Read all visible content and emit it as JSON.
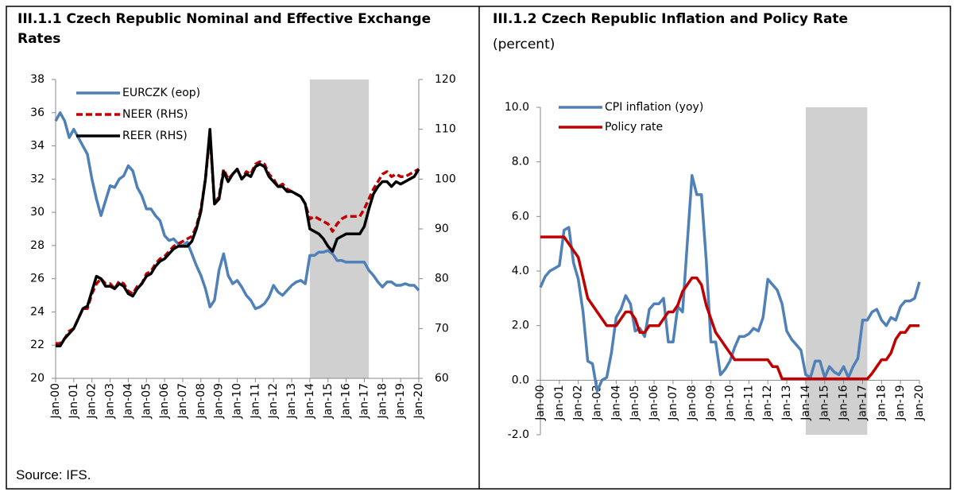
{
  "chart_data": [
    {
      "type": "line",
      "title": "III.1.1 Czech Republic Nominal and Effective Exchange Rates",
      "categories": [
        "Jan-00",
        null,
        null,
        null,
        "Jan-01",
        null,
        null,
        null,
        "Jan-02",
        null,
        null,
        null,
        "Jan-03",
        null,
        null,
        null,
        "Jan-04",
        null,
        null,
        null,
        "Jan-05",
        null,
        null,
        null,
        "Jan-06",
        null,
        null,
        null,
        "Jan-07",
        null,
        null,
        null,
        "Jan-08",
        null,
        null,
        null,
        "Jan-09",
        null,
        null,
        null,
        "Jan-10",
        null,
        null,
        null,
        "Jan-11",
        null,
        null,
        null,
        "Jan-12",
        null,
        null,
        null,
        "Jan-13",
        null,
        null,
        null,
        "Jan-14",
        null,
        null,
        null,
        "Jan-15",
        null,
        null,
        null,
        "Jan-16",
        null,
        null,
        null,
        "Jan-17",
        null,
        null,
        null,
        "Jan-18",
        null,
        null,
        null,
        "Jan-19",
        null,
        null,
        null,
        "Jan-20"
      ],
      "ylim": [
        20,
        38
      ],
      "yticks": [
        20,
        22,
        24,
        26,
        28,
        30,
        32,
        34,
        36,
        38
      ],
      "y2lim": [
        60,
        120
      ],
      "y2ticks": [
        60,
        70,
        80,
        90,
        100,
        110,
        120
      ],
      "shade_from": 56,
      "shade_to": 69,
      "shade_color": "#d0d0d0",
      "series": [
        {
          "name": "EURCZK (eop)",
          "color": "#4f81b8",
          "values": [
            35.5,
            36,
            35.5,
            34.5,
            35,
            34.5,
            34,
            33.5,
            32,
            30.8,
            29.8,
            30.7,
            31.6,
            31.5,
            32,
            32.2,
            32.8,
            32.5,
            31.5,
            31,
            30.2,
            30.2,
            29.8,
            29.5,
            28.6,
            28.3,
            28.4,
            28.1,
            28,
            28.2,
            27.5,
            26.8,
            26.2,
            25.4,
            24.3,
            24.7,
            26.5,
            27.5,
            26.2,
            25.7,
            25.9,
            25.5,
            25,
            24.7,
            24.2,
            24.3,
            24.5,
            24.9,
            25.6,
            25.2,
            25,
            25.3,
            25.6,
            25.8,
            25.9,
            25.7,
            27.4,
            27.4,
            27.6,
            27.6,
            27.7,
            27.5,
            27.1,
            27.1,
            27,
            27,
            27,
            27,
            27,
            26.5,
            26.2,
            25.8,
            25.5,
            25.8,
            25.8,
            25.6,
            25.6,
            25.7,
            25.6,
            25.6,
            25.3
          ]
        },
        {
          "name": "NEER (RHS)",
          "color": "#c00000",
          "dashed": true,
          "axis": "y2",
          "values": [
            67,
            67,
            68,
            69.5,
            70,
            72,
            74,
            74,
            77,
            79,
            80,
            79,
            79,
            78,
            79.5,
            79,
            77.5,
            77,
            78.5,
            79,
            81,
            81.5,
            83,
            84,
            84.5,
            85.5,
            86.5,
            87,
            87.5,
            88,
            88.5,
            90.5,
            94,
            100,
            109,
            95,
            96.5,
            102,
            100,
            101,
            102,
            100,
            101.5,
            101,
            103,
            103.5,
            103,
            101,
            100,
            98.5,
            99,
            98,
            97.5,
            97,
            96.5,
            95,
            92,
            92.5,
            92,
            91.5,
            91,
            89.5,
            91,
            92,
            92.5,
            92.5,
            92.5,
            92.5,
            94,
            96,
            98,
            99.5,
            101,
            101.5,
            100.5,
            101,
            100.5,
            100.5,
            101,
            101.5,
            102
          ]
        },
        {
          "name": "REER (RHS)",
          "color": "#000000",
          "axis": "y2",
          "values": [
            66.5,
            66.5,
            68,
            69,
            70,
            72,
            74,
            74.5,
            77.5,
            80.5,
            80,
            78.5,
            78.5,
            78,
            79,
            78.5,
            77,
            76.5,
            78,
            79,
            80.5,
            81,
            82.5,
            83.5,
            84,
            85,
            86,
            86.5,
            86.5,
            86.5,
            87.5,
            90,
            93.5,
            100,
            110,
            95,
            96,
            101.5,
            99.5,
            101,
            102,
            100,
            101,
            100.5,
            102.5,
            103,
            102.5,
            100.5,
            99.5,
            98.5,
            98.5,
            97.5,
            97.5,
            97,
            96.5,
            95,
            90,
            89.5,
            89,
            88,
            86.5,
            85.5,
            88,
            88.5,
            89,
            89,
            89,
            89,
            90.5,
            94,
            97,
            98.5,
            99.5,
            99.5,
            98.5,
            99.5,
            99,
            99.5,
            100,
            100.5,
            102
          ]
        }
      ]
    },
    {
      "type": "line",
      "title": "III.1.2 Czech Republic Inflation and Policy Rate",
      "subtitle": "(percent)",
      "categories": [
        "Jan-00",
        null,
        null,
        null,
        "Jan-01",
        null,
        null,
        null,
        "Jan-02",
        null,
        null,
        null,
        "Jan-03",
        null,
        null,
        null,
        "Jan-04",
        null,
        null,
        null,
        "Jan-05",
        null,
        null,
        null,
        "Jan-06",
        null,
        null,
        null,
        "Jan-07",
        null,
        null,
        null,
        "Jan-08",
        null,
        null,
        null,
        "Jan-09",
        null,
        null,
        null,
        "Jan-10",
        null,
        null,
        null,
        "Jan-11",
        null,
        null,
        null,
        "Jan-12",
        null,
        null,
        null,
        "Jan-13",
        null,
        null,
        null,
        "Jan-14",
        null,
        null,
        null,
        "Jan-15",
        null,
        null,
        null,
        "Jan-16",
        null,
        null,
        null,
        "Jan-17",
        null,
        null,
        null,
        "Jan-18",
        null,
        null,
        null,
        "Jan-19",
        null,
        null,
        null,
        "Jan-20"
      ],
      "ylim": [
        -2,
        10
      ],
      "yticks": [
        {
          "value": -2,
          "label": "-2.0"
        },
        {
          "value": 0,
          "label": "0.0"
        },
        {
          "value": 2,
          "label": "2.0"
        },
        {
          "value": 4,
          "label": "4.0"
        },
        {
          "value": 6,
          "label": "6.0"
        },
        {
          "value": 8,
          "label": "8.0"
        },
        {
          "value": 10,
          "label": "10.0"
        }
      ],
      "shade_from": 56,
      "shade_to": 69,
      "shade_color": "#d0d0d0",
      "series": [
        {
          "name": "CPI inflation (yoy)",
          "color": "#4f81b8",
          "values": [
            3.4,
            3.8,
            4,
            4.1,
            4.2,
            5.5,
            5.6,
            4.3,
            3.7,
            2.5,
            0.7,
            0.6,
            -0.4,
            0,
            0.1,
            1,
            2.3,
            2.6,
            3.1,
            2.8,
            1.8,
            1.9,
            1.6,
            2.6,
            2.8,
            2.8,
            3,
            1.4,
            1.4,
            2.7,
            2.5,
            5,
            7.5,
            6.8,
            6.8,
            4.4,
            1.4,
            1.4,
            0.2,
            0.4,
            0.7,
            1.2,
            1.6,
            1.6,
            1.7,
            1.9,
            1.8,
            2.3,
            3.7,
            3.5,
            3.3,
            2.8,
            1.8,
            1.5,
            1.3,
            1.1,
            0.2,
            0.1,
            0.7,
            0.7,
            0.1,
            0.5,
            0.3,
            0.2,
            0.5,
            0.1,
            0.5,
            0.8,
            2.2,
            2.2,
            2.5,
            2.6,
            2.2,
            2,
            2.3,
            2.2,
            2.7,
            2.9,
            2.9,
            3,
            3.6
          ]
        },
        {
          "name": "Policy rate",
          "color": "#c00000",
          "values": [
            5.25,
            5.25,
            5.25,
            5.25,
            5.25,
            5.25,
            5,
            4.75,
            4.5,
            3.75,
            3,
            2.75,
            2.5,
            2.25,
            2,
            2,
            2,
            2.25,
            2.5,
            2.5,
            2.25,
            1.75,
            1.75,
            2,
            2,
            2,
            2.25,
            2.5,
            2.5,
            2.75,
            3.25,
            3.5,
            3.75,
            3.75,
            3.5,
            2.75,
            2.25,
            1.75,
            1.5,
            1.25,
            1,
            0.75,
            0.75,
            0.75,
            0.75,
            0.75,
            0.75,
            0.75,
            0.75,
            0.5,
            0.5,
            0.05,
            0.05,
            0.05,
            0.05,
            0.05,
            0.05,
            0.05,
            0.05,
            0.05,
            0.05,
            0.05,
            0.05,
            0.05,
            0.05,
            0.05,
            0.05,
            0.05,
            0.05,
            0.05,
            0.25,
            0.5,
            0.75,
            0.75,
            1,
            1.5,
            1.75,
            1.75,
            2,
            2,
            2
          ]
        }
      ]
    }
  ],
  "source": "Source: IFS."
}
